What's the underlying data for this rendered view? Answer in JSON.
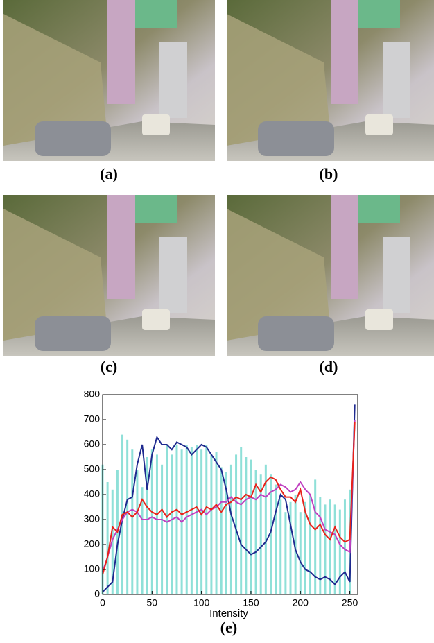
{
  "figure": {
    "captions": [
      "(a)",
      "(b)",
      "(c)",
      "(d)",
      "(e)"
    ]
  },
  "chart_data": {
    "type": "line",
    "xlabel": "Intensity",
    "x": [
      0,
      5,
      10,
      15,
      20,
      25,
      30,
      35,
      40,
      45,
      50,
      55,
      60,
      65,
      70,
      75,
      80,
      85,
      90,
      95,
      100,
      105,
      110,
      115,
      120,
      125,
      130,
      135,
      140,
      145,
      150,
      155,
      160,
      165,
      170,
      175,
      180,
      185,
      190,
      195,
      200,
      205,
      210,
      215,
      220,
      225,
      230,
      235,
      240,
      245,
      250,
      255
    ],
    "xlim": [
      0,
      258
    ],
    "xticks": [
      0,
      50,
      100,
      150,
      200,
      250
    ],
    "ylim": [
      0,
      800
    ],
    "yticks": [
      0,
      100,
      200,
      300,
      400,
      500,
      600,
      700,
      800
    ],
    "series": [
      {
        "style": "bar",
        "color": "#8fe0d8",
        "values": [
          520,
          450,
          420,
          500,
          640,
          620,
          580,
          500,
          430,
          550,
          580,
          560,
          520,
          600,
          560,
          600,
          580,
          600,
          590,
          600,
          580,
          600,
          560,
          570,
          510,
          490,
          520,
          560,
          590,
          550,
          540,
          500,
          480,
          520,
          480,
          440,
          380,
          330,
          370,
          400,
          330,
          370,
          400,
          460,
          390,
          360,
          380,
          360,
          340,
          380,
          420,
          null
        ]
      },
      {
        "style": "line",
        "color": "#1f2a8f",
        "values": [
          10,
          30,
          50,
          200,
          300,
          380,
          390,
          520,
          600,
          420,
          560,
          630,
          600,
          600,
          580,
          610,
          600,
          590,
          560,
          580,
          600,
          590,
          560,
          530,
          500,
          420,
          320,
          260,
          200,
          180,
          160,
          170,
          190,
          210,
          250,
          330,
          400,
          380,
          280,
          180,
          130,
          100,
          90,
          70,
          60,
          70,
          60,
          40,
          70,
          90,
          50,
          760
        ]
      },
      {
        "style": "line",
        "color": "#c040c0",
        "values": [
          90,
          150,
          220,
          260,
          300,
          330,
          340,
          330,
          300,
          300,
          310,
          300,
          300,
          290,
          300,
          310,
          290,
          310,
          320,
          330,
          340,
          320,
          340,
          350,
          370,
          370,
          390,
          370,
          360,
          380,
          390,
          380,
          400,
          390,
          410,
          420,
          440,
          430,
          410,
          420,
          450,
          420,
          400,
          330,
          310,
          260,
          250,
          240,
          200,
          180,
          170,
          700
        ]
      },
      {
        "style": "line",
        "color": "#e8221a",
        "values": [
          80,
          150,
          270,
          250,
          320,
          330,
          310,
          330,
          380,
          350,
          330,
          320,
          340,
          310,
          330,
          340,
          320,
          330,
          340,
          350,
          320,
          350,
          340,
          360,
          330,
          360,
          370,
          390,
          380,
          400,
          390,
          440,
          410,
          450,
          470,
          460,
          420,
          390,
          390,
          370,
          420,
          330,
          280,
          260,
          280,
          240,
          220,
          270,
          230,
          210,
          220,
          690
        ]
      }
    ]
  }
}
